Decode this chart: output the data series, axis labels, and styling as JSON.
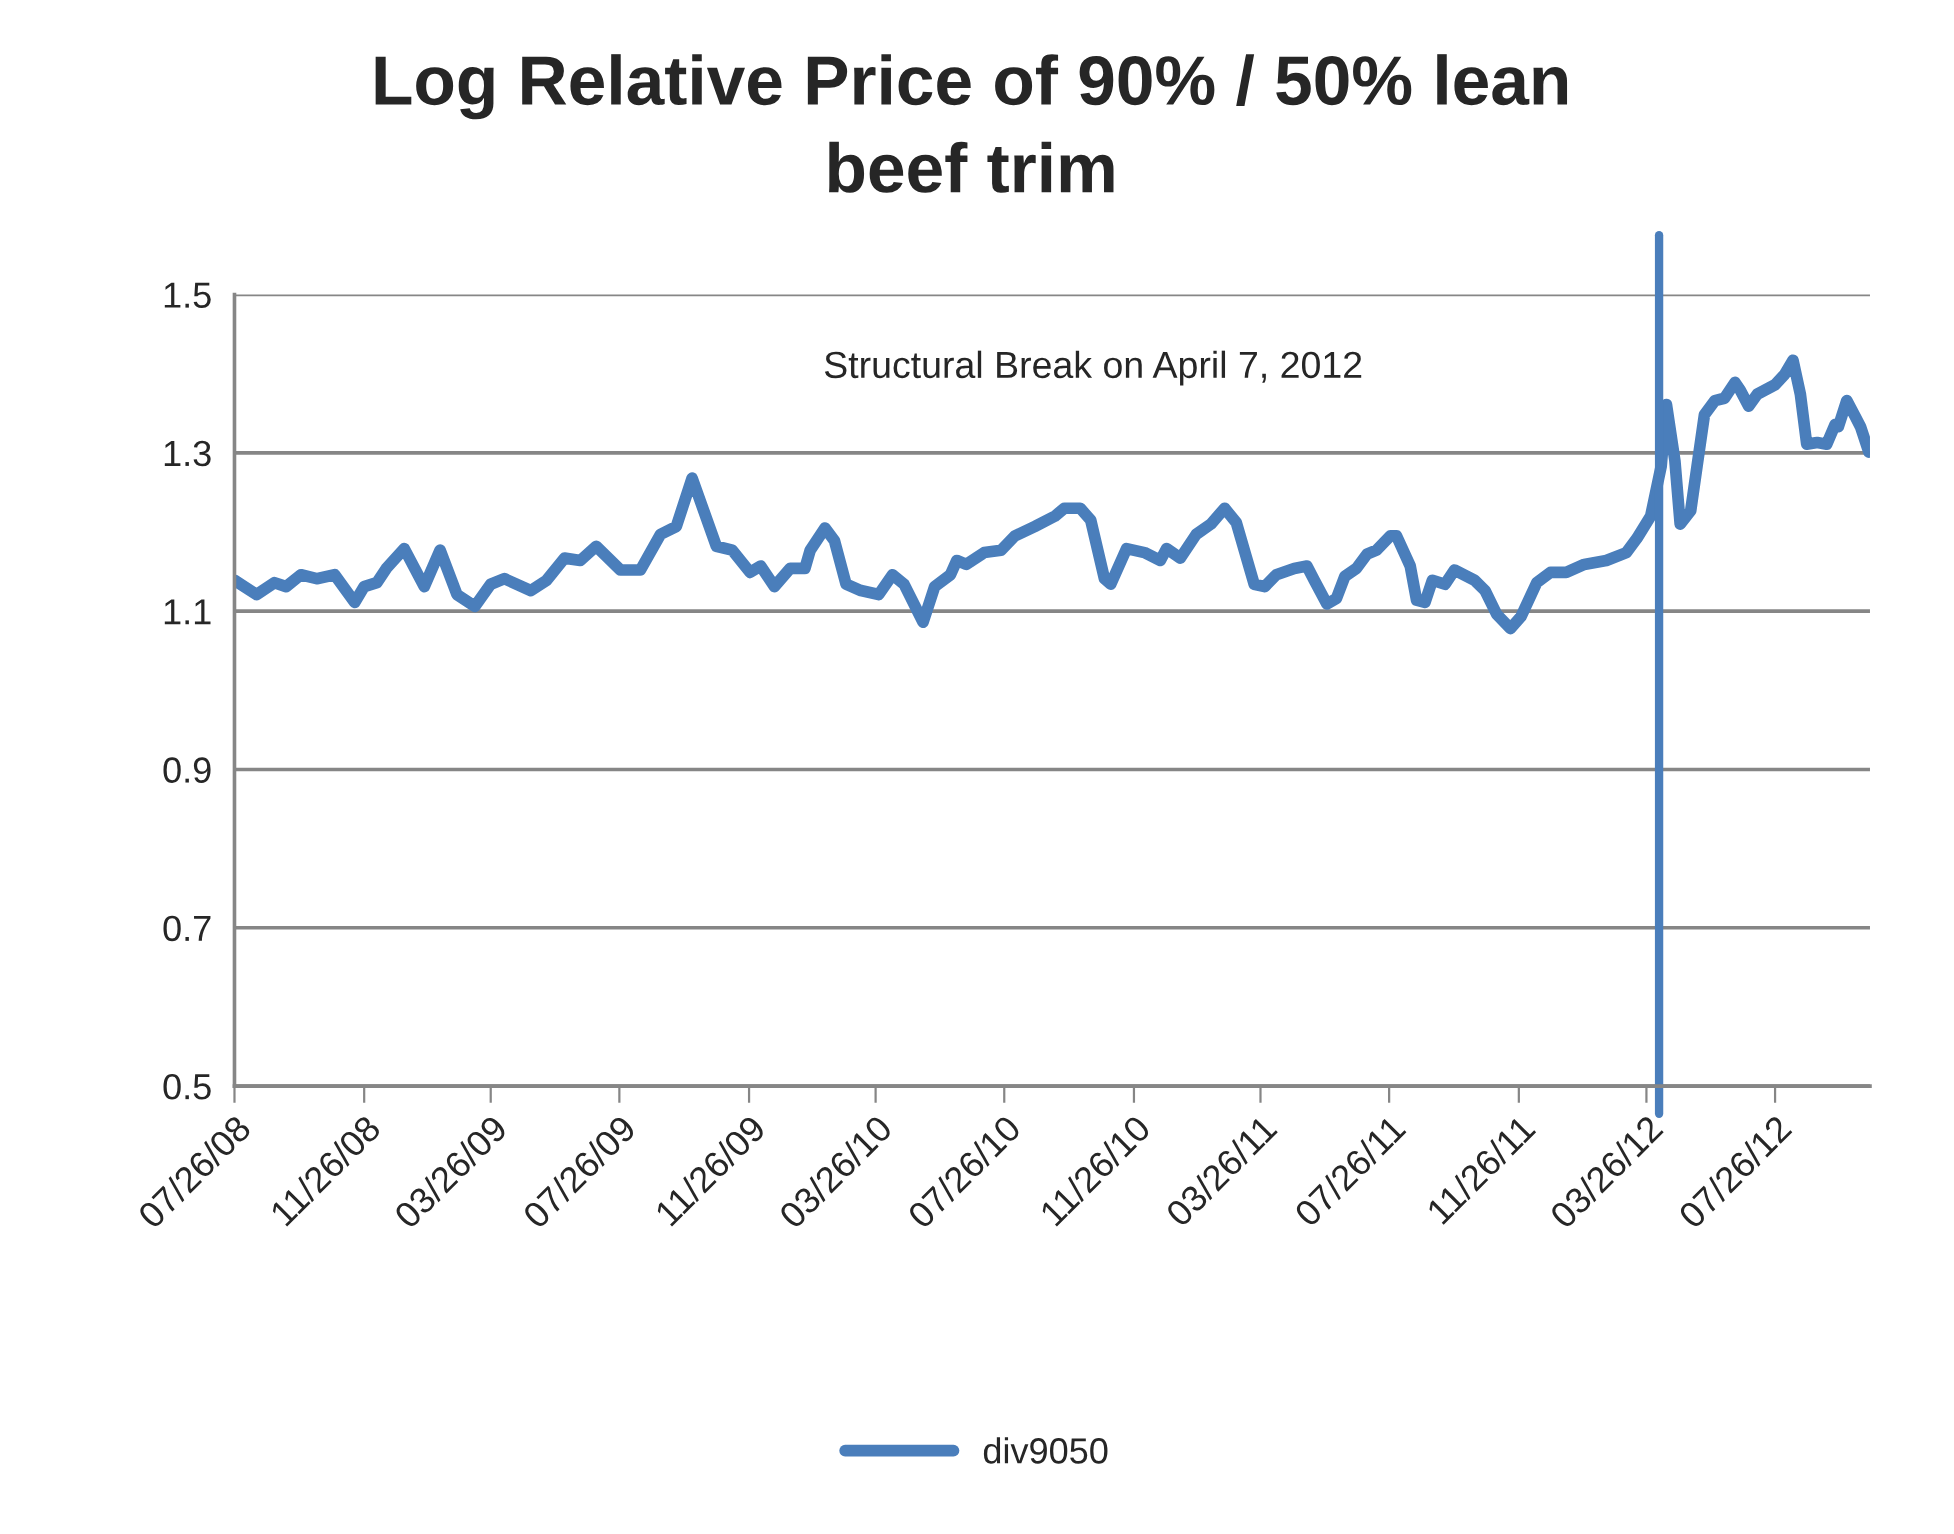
{
  "chart_data": {
    "type": "line",
    "title": "Log Relative Price of 90% / 50% lean\nbeef trim",
    "x": [
      "2008-07-26",
      "2008-08-16",
      "2008-09-02",
      "2008-09-13",
      "2008-09-27",
      "2008-10-12",
      "2008-10-29",
      "2008-11-17",
      "2008-11-26",
      "2008-12-08",
      "2008-12-17",
      "2009-01-03",
      "2009-01-22",
      "2009-02-06",
      "2009-02-22",
      "2009-03-11",
      "2009-03-26",
      "2009-04-08",
      "2009-05-03",
      "2009-05-18",
      "2009-06-04",
      "2009-06-19",
      "2009-07-04",
      "2009-07-27",
      "2009-08-15",
      "2009-09-03",
      "2009-09-18",
      "2009-10-03",
      "2009-10-26",
      "2009-11-10",
      "2009-11-27",
      "2009-12-07",
      "2009-12-20",
      "2010-01-04",
      "2010-01-18",
      "2010-01-23",
      "2010-02-06",
      "2010-02-15",
      "2010-02-26",
      "2010-03-12",
      "2010-03-29",
      "2010-04-11",
      "2010-04-22",
      "2010-05-10",
      "2010-05-21",
      "2010-06-05",
      "2010-06-11",
      "2010-06-20",
      "2010-07-07",
      "2010-07-23",
      "2010-08-05",
      "2010-08-24",
      "2010-09-12",
      "2010-09-21",
      "2010-10-06",
      "2010-10-16",
      "2010-10-29",
      "2010-11-04",
      "2010-11-19",
      "2010-12-06",
      "2010-12-21",
      "2010-12-27",
      "2011-01-09",
      "2011-01-24",
      "2011-02-07",
      "2011-02-20",
      "2011-03-03",
      "2011-03-20",
      "2011-03-30",
      "2011-04-10",
      "2011-04-27",
      "2011-05-09",
      "2011-05-16",
      "2011-05-28",
      "2011-06-06",
      "2011-06-14",
      "2011-06-25",
      "2011-07-05",
      "2011-07-14",
      "2011-07-27",
      "2011-08-02",
      "2011-08-15",
      "2011-08-21",
      "2011-08-29",
      "2011-09-05",
      "2011-09-17",
      "2011-09-26",
      "2011-10-15",
      "2011-10-25",
      "2011-11-05",
      "2011-11-18",
      "2011-11-28",
      "2011-12-13",
      "2011-12-26",
      "2012-01-10",
      "2012-01-27",
      "2012-02-17",
      "2012-03-07",
      "2012-03-17",
      "2012-03-30",
      "2012-04-09",
      "2012-04-14",
      "2012-04-22",
      "2012-04-27",
      "2012-05-07",
      "2012-05-13",
      "2012-05-20",
      "2012-05-30",
      "2012-06-08",
      "2012-06-18",
      "2012-06-23",
      "2012-07-01",
      "2012-07-09",
      "2012-07-26",
      "2012-08-04",
      "2012-08-12",
      "2012-08-19",
      "2012-08-25",
      "2012-09-04",
      "2012-09-13",
      "2012-09-21",
      "2012-09-24",
      "2012-10-02",
      "2012-10-10",
      "2012-10-15",
      "2012-10-23"
    ],
    "series": [
      {
        "name": "div9050",
        "color": "#4a7ebb",
        "values": [
          1.139,
          1.121,
          1.136,
          1.131,
          1.146,
          1.141,
          1.146,
          1.111,
          1.131,
          1.136,
          1.154,
          1.179,
          1.131,
          1.177,
          1.121,
          1.106,
          1.134,
          1.141,
          1.126,
          1.139,
          1.167,
          1.164,
          1.182,
          1.152,
          1.152,
          1.197,
          1.207,
          1.268,
          1.182,
          1.177,
          1.149,
          1.157,
          1.131,
          1.154,
          1.154,
          1.177,
          1.205,
          1.189,
          1.134,
          1.126,
          1.121,
          1.146,
          1.134,
          1.086,
          1.131,
          1.146,
          1.164,
          1.159,
          1.174,
          1.177,
          1.195,
          1.207,
          1.22,
          1.23,
          1.23,
          1.215,
          1.141,
          1.134,
          1.179,
          1.174,
          1.164,
          1.179,
          1.167,
          1.197,
          1.21,
          1.23,
          1.212,
          1.134,
          1.131,
          1.146,
          1.154,
          1.157,
          1.139,
          1.109,
          1.116,
          1.144,
          1.154,
          1.172,
          1.177,
          1.195,
          1.195,
          1.157,
          1.114,
          1.111,
          1.139,
          1.134,
          1.152,
          1.139,
          1.126,
          1.096,
          1.078,
          1.093,
          1.136,
          1.149,
          1.149,
          1.159,
          1.164,
          1.174,
          1.192,
          1.22,
          1.283,
          1.361,
          1.29,
          1.21,
          1.227,
          1.283,
          1.348,
          1.366,
          1.369,
          1.389,
          1.379,
          1.359,
          1.374,
          1.386,
          1.399,
          1.417,
          1.374,
          1.311,
          1.313,
          1.311,
          1.336,
          1.333,
          1.366,
          1.346,
          1.333,
          1.301
        ]
      }
    ],
    "xlim": [
      "2008-07-26",
      "2012-10-24"
    ],
    "xticks": [
      {
        "value": "2008-07-26",
        "label": "07/26/08"
      },
      {
        "value": "2008-11-26",
        "label": "11/26/08"
      },
      {
        "value": "2009-03-26",
        "label": "03/26/09"
      },
      {
        "value": "2009-07-26",
        "label": "07/26/09"
      },
      {
        "value": "2009-11-26",
        "label": "11/26/09"
      },
      {
        "value": "2010-03-26",
        "label": "03/26/10"
      },
      {
        "value": "2010-07-26",
        "label": "07/26/10"
      },
      {
        "value": "2010-11-26",
        "label": "11/26/10"
      },
      {
        "value": "2011-03-26",
        "label": "03/26/11"
      },
      {
        "value": "2011-07-26",
        "label": "07/26/11"
      },
      {
        "value": "2011-11-26",
        "label": "11/26/11"
      },
      {
        "value": "2012-03-26",
        "label": "03/26/12"
      },
      {
        "value": "2012-07-26",
        "label": "07/26/12"
      }
    ],
    "ylim": [
      0.5,
      1.5
    ],
    "yticks": [
      0.5,
      0.7,
      0.9,
      1.1,
      1.3,
      1.5
    ],
    "ref_lines": [
      {
        "axis": "x",
        "value": "2012-04-07",
        "color": "#4a7ebb"
      }
    ],
    "annotations": [
      "Structural Break on April 7, 2012"
    ],
    "grid": "y",
    "legend": "bottom",
    "line_style": "solid"
  }
}
